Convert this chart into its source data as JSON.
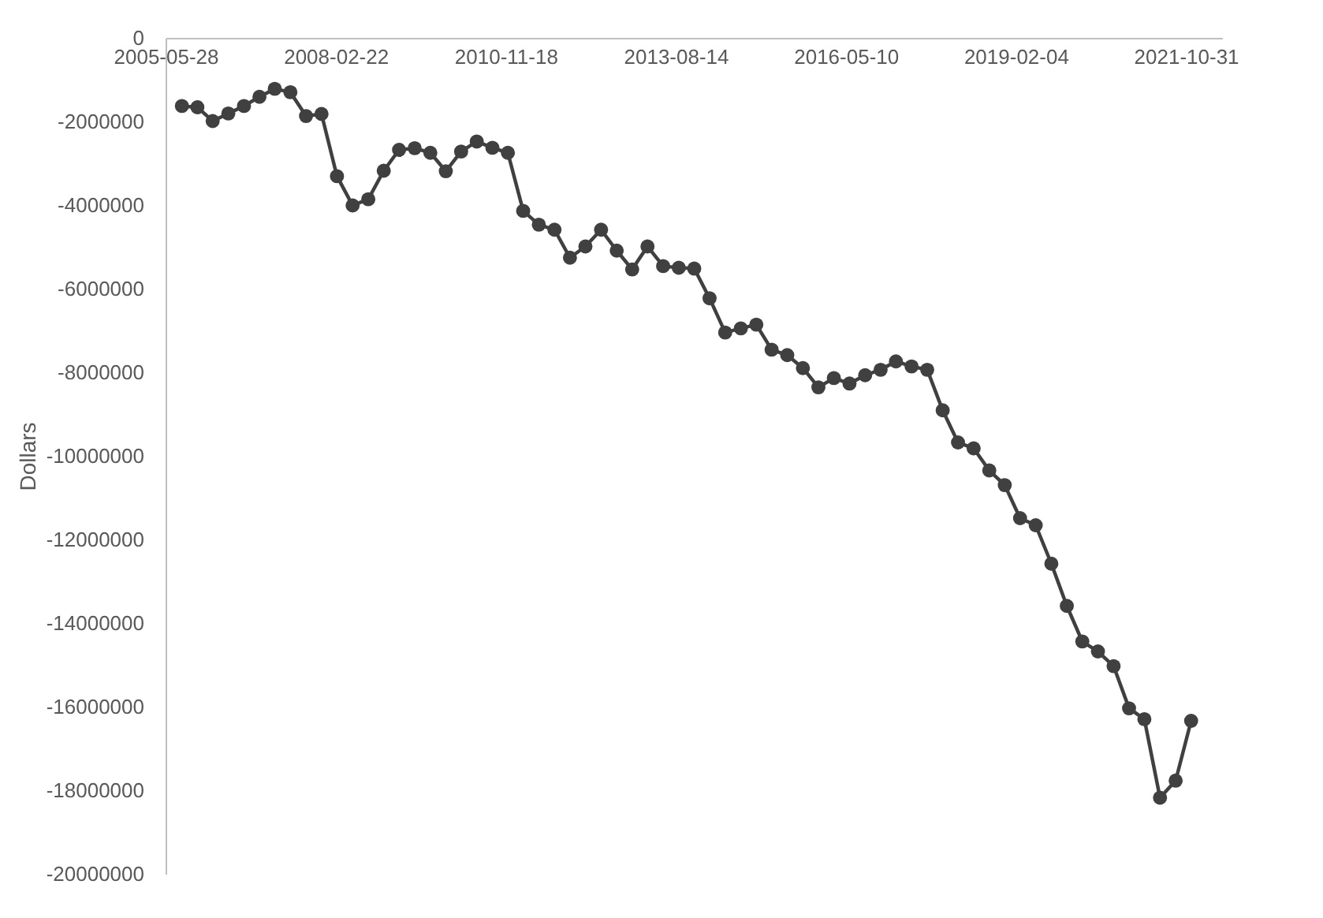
{
  "chart_data": {
    "type": "line",
    "ylabel": "Dollars",
    "x": [
      "2005-09",
      "2005-12",
      "2006-03",
      "2006-06",
      "2006-09",
      "2006-12",
      "2007-03",
      "2007-06",
      "2007-09",
      "2007-12",
      "2008-03",
      "2008-06",
      "2008-09",
      "2008-12",
      "2009-03",
      "2009-06",
      "2009-09",
      "2009-12",
      "2010-03",
      "2010-06",
      "2010-09",
      "2010-12",
      "2011-03",
      "2011-06",
      "2011-09",
      "2011-12",
      "2012-03",
      "2012-06",
      "2012-09",
      "2012-12",
      "2013-03",
      "2013-06",
      "2013-09",
      "2013-12",
      "2014-03",
      "2014-06",
      "2014-09",
      "2014-12",
      "2015-03",
      "2015-06",
      "2015-09",
      "2015-12",
      "2016-03",
      "2016-06",
      "2016-09",
      "2016-12",
      "2017-03",
      "2017-06",
      "2017-09",
      "2017-12",
      "2018-03",
      "2018-06",
      "2018-09",
      "2018-12",
      "2019-03",
      "2019-06",
      "2019-09",
      "2019-12",
      "2020-03",
      "2020-06",
      "2020-09",
      "2020-12",
      "2021-03",
      "2021-06",
      "2021-09",
      "2021-12"
    ],
    "series": [
      {
        "color": "#404040",
        "values": [
          -1630000,
          -1660000,
          -1990000,
          -1810000,
          -1630000,
          -1410000,
          -1220000,
          -1300000,
          -1870000,
          -1820000,
          -3310000,
          -4010000,
          -3860000,
          -3180000,
          -2680000,
          -2640000,
          -2750000,
          -3190000,
          -2720000,
          -2480000,
          -2630000,
          -2750000,
          -4140000,
          -4470000,
          -4590000,
          -5260000,
          -4990000,
          -4590000,
          -5090000,
          -5540000,
          -4990000,
          -5460000,
          -5500000,
          -5520000,
          -6230000,
          -7050000,
          -6950000,
          -6860000,
          -7460000,
          -7590000,
          -7900000,
          -8360000,
          -8140000,
          -8270000,
          -8070000,
          -7940000,
          -7740000,
          -7860000,
          -7940000,
          -8910000,
          -9680000,
          -9820000,
          -10350000,
          -10700000,
          -11490000,
          -11660000,
          -12580000,
          -13590000,
          -14440000,
          -14680000,
          -15030000,
          -16040000,
          -16300000,
          -18180000,
          -17770000,
          -16340000
        ]
      }
    ],
    "xlim": [
      "2005-05-28",
      "2022-06-01"
    ],
    "xticks": [
      "2005-05-28",
      "2008-02-22",
      "2010-11-18",
      "2013-08-14",
      "2016-05-10",
      "2019-02-04",
      "2021-10-31"
    ],
    "ylim": [
      -20000000,
      0
    ],
    "yticks": [
      0,
      -2000000,
      -4000000,
      -6000000,
      -8000000,
      -10000000,
      -12000000,
      -14000000,
      -16000000,
      -18000000,
      -20000000
    ],
    "grid": false,
    "marker": "circle",
    "line_style": "solid"
  }
}
